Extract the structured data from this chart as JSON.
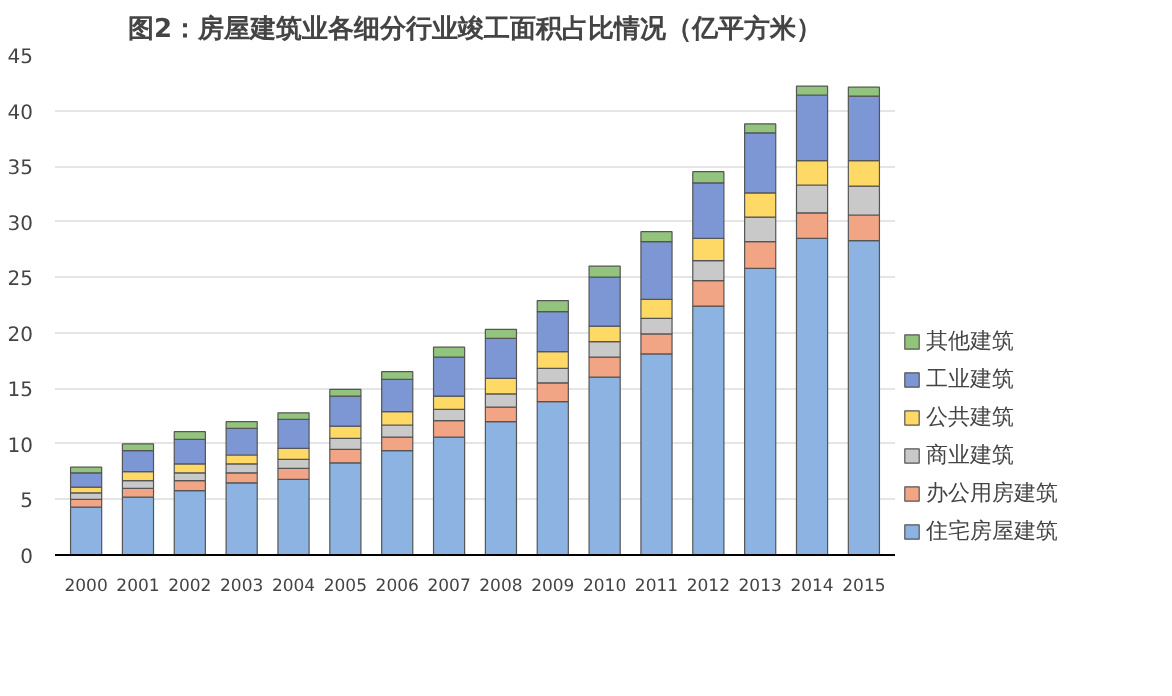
{
  "chart_data": {
    "type": "bar",
    "title": "图2：房屋建筑业各细分行业竣工面积占比情况（亿平方米）",
    "categories": [
      "2000",
      "2001",
      "2002",
      "2003",
      "2004",
      "2005",
      "2006",
      "2007",
      "2008",
      "2009",
      "2010",
      "2011",
      "2012",
      "2013",
      "2014",
      "2015"
    ],
    "stacked": true,
    "ylim": [
      0,
      45
    ],
    "yticks": [
      0,
      5,
      10,
      15,
      20,
      25,
      30,
      35,
      40,
      45
    ],
    "grid": "y",
    "legend": "right",
    "series": [
      {
        "name": "住宅房屋建筑",
        "color": "#8db3e2",
        "values": [
          4.3,
          5.2,
          5.8,
          6.5,
          6.8,
          8.3,
          9.4,
          10.6,
          12.0,
          13.8,
          16.0,
          18.1,
          22.4,
          25.8,
          28.5,
          28.3
        ]
      },
      {
        "name": "办公用房建筑",
        "color": "#f2a584",
        "values": [
          0.7,
          0.8,
          0.9,
          0.9,
          1.0,
          1.2,
          1.2,
          1.5,
          1.3,
          1.7,
          1.8,
          1.8,
          2.3,
          2.4,
          2.3,
          2.3
        ]
      },
      {
        "name": "商业建筑",
        "color": "#c9c9c9",
        "values": [
          0.6,
          0.7,
          0.7,
          0.8,
          0.8,
          1.0,
          1.1,
          1.0,
          1.2,
          1.3,
          1.4,
          1.4,
          1.8,
          2.2,
          2.5,
          2.6
        ]
      },
      {
        "name": "公共建筑",
        "color": "#ffd966",
        "values": [
          0.5,
          0.8,
          0.8,
          0.8,
          1.0,
          1.1,
          1.2,
          1.2,
          1.4,
          1.5,
          1.4,
          1.7,
          2.0,
          2.2,
          2.2,
          2.3
        ]
      },
      {
        "name": "工业建筑",
        "color": "#7d96d4",
        "values": [
          1.3,
          1.9,
          2.2,
          2.4,
          2.6,
          2.7,
          2.9,
          3.5,
          3.6,
          3.6,
          4.4,
          5.2,
          5.0,
          5.4,
          5.9,
          5.8
        ]
      },
      {
        "name": "其他建筑",
        "color": "#93c47d",
        "values": [
          0.5,
          0.6,
          0.7,
          0.6,
          0.6,
          0.6,
          0.7,
          0.9,
          0.8,
          1.0,
          1.0,
          0.9,
          1.0,
          0.8,
          0.8,
          0.8
        ]
      }
    ]
  }
}
